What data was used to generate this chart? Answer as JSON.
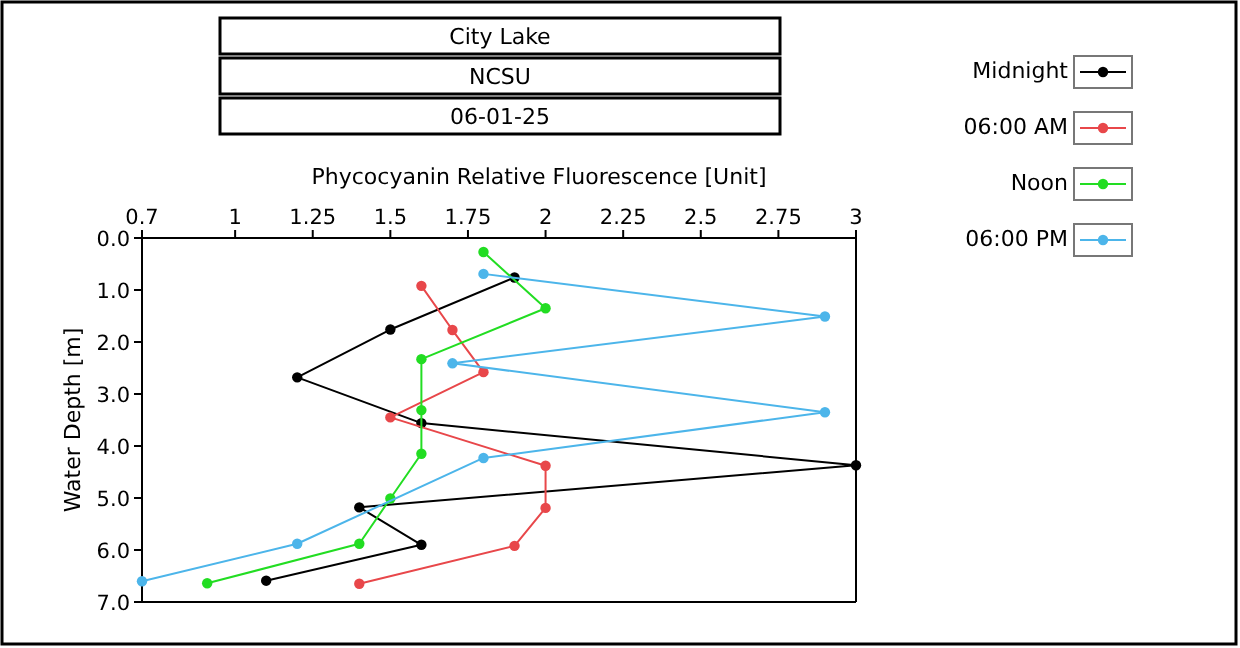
{
  "chart_data": {
    "type": "line",
    "title": "City Lake",
    "subtitle": "NCSU",
    "annotations": [
      "06-01-25"
    ],
    "xlabel": "Phycocyanin Relative Fluorescence [Unit]",
    "ylabel": "Water Depth [m]",
    "xlim": [
      0.7,
      3
    ],
    "xticks": [
      0.7,
      1,
      1.25,
      1.5,
      1.75,
      2,
      2.25,
      2.5,
      2.75,
      3
    ],
    "ylim": [
      7,
      0
    ],
    "yticks": [
      {
        "value": 0,
        "label": "0.0"
      },
      {
        "value": 1,
        "label": "1.0"
      },
      {
        "value": 2,
        "label": "2.0"
      },
      {
        "value": 3,
        "label": "3.0"
      },
      {
        "value": 4,
        "label": "4.0"
      },
      {
        "value": 5,
        "label": "5.0"
      },
      {
        "value": 6,
        "label": "6.0"
      },
      {
        "value": 7,
        "label": "7.0"
      }
    ],
    "grid": false,
    "legend": "top right",
    "marker": "circle",
    "line_style": "solid",
    "series": [
      {
        "name": "Midnight",
        "color": "#000000",
        "x": [
          1.9,
          1.5,
          1.2,
          1.6,
          3.0,
          1.4,
          1.6,
          1.1
        ],
        "values": [
          0.76,
          1.76,
          2.68,
          3.56,
          4.37,
          5.18,
          5.9,
          6.59
        ]
      },
      {
        "name": "06:00 AM",
        "color": "#e8474a",
        "x": [
          1.6,
          1.7,
          1.8,
          1.5,
          2.0,
          2.0,
          1.9,
          1.4
        ],
        "values": [
          0.92,
          1.77,
          2.58,
          3.45,
          4.38,
          5.19,
          5.92,
          6.65
        ]
      },
      {
        "name": "Noon",
        "color": "#22dd22",
        "x": [
          1.8,
          2.0,
          1.6,
          1.6,
          1.6,
          1.5,
          1.4,
          0.91
        ],
        "values": [
          0.27,
          1.35,
          2.33,
          3.31,
          4.15,
          5.01,
          5.88,
          6.64
        ]
      },
      {
        "name": "06:00 PM",
        "color": "#4cb5ea",
        "x": [
          1.8,
          2.9,
          1.7,
          2.9,
          1.8,
          1.5,
          1.2,
          0.7
        ],
        "values": [
          0.69,
          1.51,
          2.41,
          3.35,
          4.23,
          null,
          5.88,
          6.6
        ]
      }
    ]
  }
}
